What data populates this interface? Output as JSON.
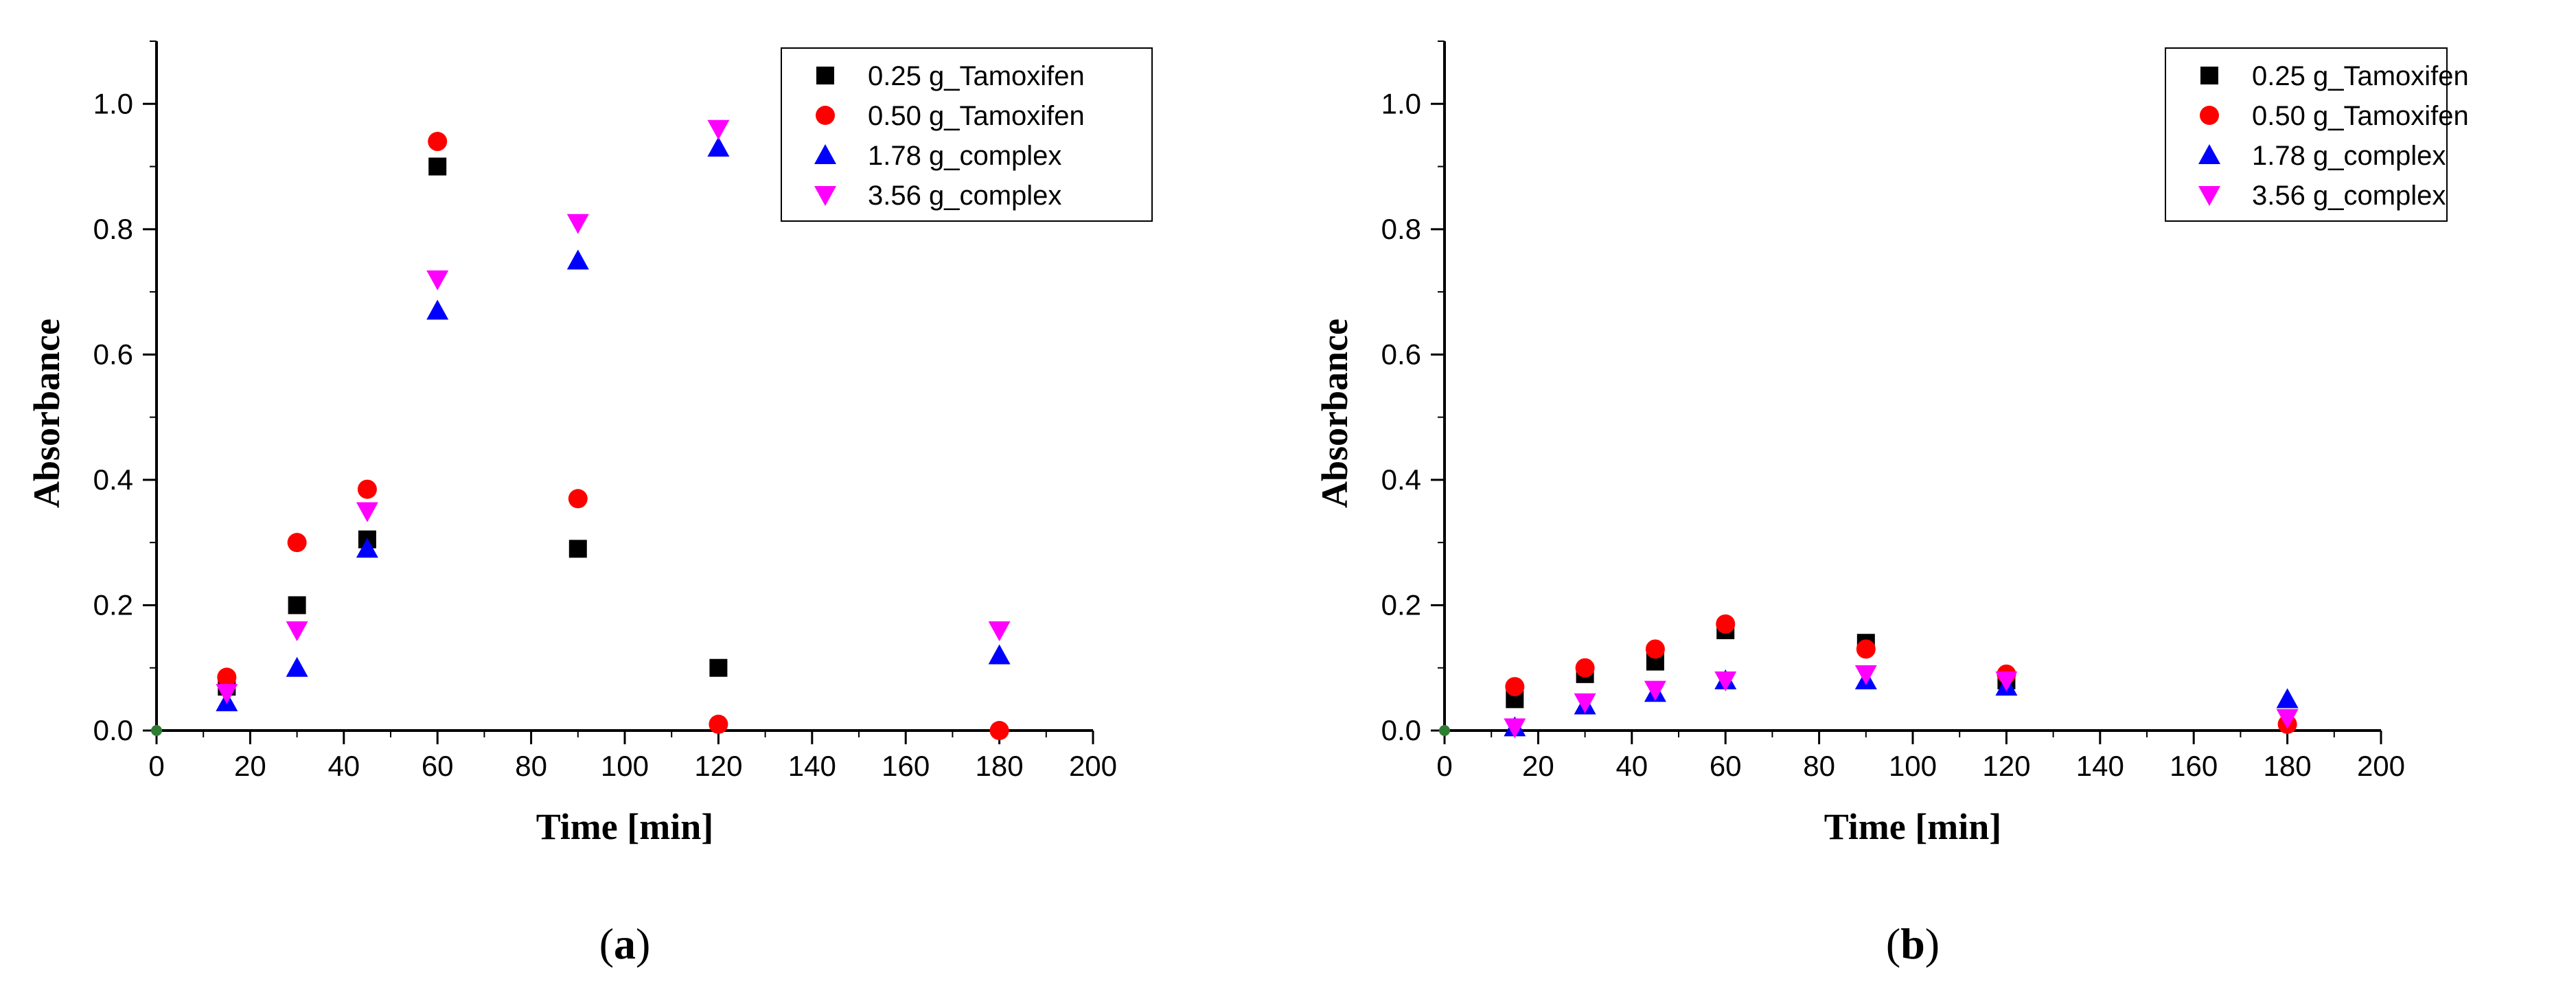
{
  "panels": [
    {
      "label_open": "(",
      "label_letter": "a",
      "label_close": ")",
      "chart_data": {
        "type": "scatter",
        "xlabel": "Time [min]",
        "ylabel": "Absorbance",
        "xlim": [
          0,
          200
        ],
        "ylim": [
          0,
          1.1
        ],
        "xticks": [
          0,
          20,
          40,
          60,
          80,
          100,
          120,
          140,
          160,
          180,
          200
        ],
        "yticks": [
          "0.0",
          "0.2",
          "0.4",
          "0.6",
          "0.8",
          "1.0"
        ],
        "legend_position": "top-right",
        "origin_marker_color": "#2e7d32",
        "series": [
          {
            "name": "0.25 g_Tamoxifen",
            "marker": "square",
            "color": "#000000",
            "x": [
              15,
              30,
              45,
              60,
              90,
              120
            ],
            "y": [
              0.07,
              0.2,
              0.305,
              0.9,
              0.29,
              0.1
            ]
          },
          {
            "name": "0.50 g_Tamoxifen",
            "marker": "circle",
            "color": "#ff0000",
            "x": [
              15,
              30,
              45,
              60,
              90,
              120,
              180
            ],
            "y": [
              0.085,
              0.3,
              0.385,
              0.94,
              0.37,
              0.01,
              0.0
            ]
          },
          {
            "name": "1.78 g_complex",
            "marker": "triangle-up",
            "color": "#0000ff",
            "x": [
              15,
              30,
              45,
              60,
              90,
              120,
              180
            ],
            "y": [
              0.045,
              0.1,
              0.29,
              0.67,
              0.75,
              0.93,
              0.12
            ]
          },
          {
            "name": "3.56 g_complex",
            "marker": "triangle-down",
            "color": "#ff00ff",
            "x": [
              15,
              30,
              45,
              60,
              90,
              120,
              180
            ],
            "y": [
              0.06,
              0.16,
              0.35,
              0.72,
              0.81,
              0.96,
              0.16
            ]
          }
        ]
      }
    },
    {
      "label_open": "(",
      "label_letter": "b",
      "label_close": ")",
      "chart_data": {
        "type": "scatter",
        "xlabel": "Time [min]",
        "ylabel": "Absorbance",
        "xlim": [
          0,
          200
        ],
        "ylim": [
          0,
          1.1
        ],
        "xticks": [
          0,
          20,
          40,
          60,
          80,
          100,
          120,
          140,
          160,
          180,
          200
        ],
        "yticks": [
          "0.0",
          "0.2",
          "0.4",
          "0.6",
          "0.8",
          "1.0"
        ],
        "legend_position": "top-right",
        "origin_marker_color": "#2e7d32",
        "series": [
          {
            "name": "0.25 g_Tamoxifen",
            "marker": "square",
            "color": "#000000",
            "x": [
              15,
              30,
              45,
              60,
              90,
              120
            ],
            "y": [
              0.05,
              0.09,
              0.11,
              0.16,
              0.14,
              0.08
            ]
          },
          {
            "name": "0.50 g_Tamoxifen",
            "marker": "circle",
            "color": "#ff0000",
            "x": [
              15,
              30,
              45,
              60,
              90,
              120,
              180
            ],
            "y": [
              0.07,
              0.1,
              0.13,
              0.17,
              0.13,
              0.09,
              0.01
            ]
          },
          {
            "name": "1.78 g_complex",
            "marker": "triangle-up",
            "color": "#0000ff",
            "x": [
              15,
              30,
              45,
              60,
              90,
              120,
              180
            ],
            "y": [
              0.005,
              0.04,
              0.06,
              0.08,
              0.08,
              0.07,
              0.05
            ]
          },
          {
            "name": "3.56 g_complex",
            "marker": "triangle-down",
            "color": "#ff00ff",
            "x": [
              15,
              30,
              45,
              60,
              90,
              120,
              180
            ],
            "y": [
              0.005,
              0.045,
              0.065,
              0.08,
              0.09,
              0.08,
              0.02
            ]
          }
        ]
      }
    }
  ]
}
